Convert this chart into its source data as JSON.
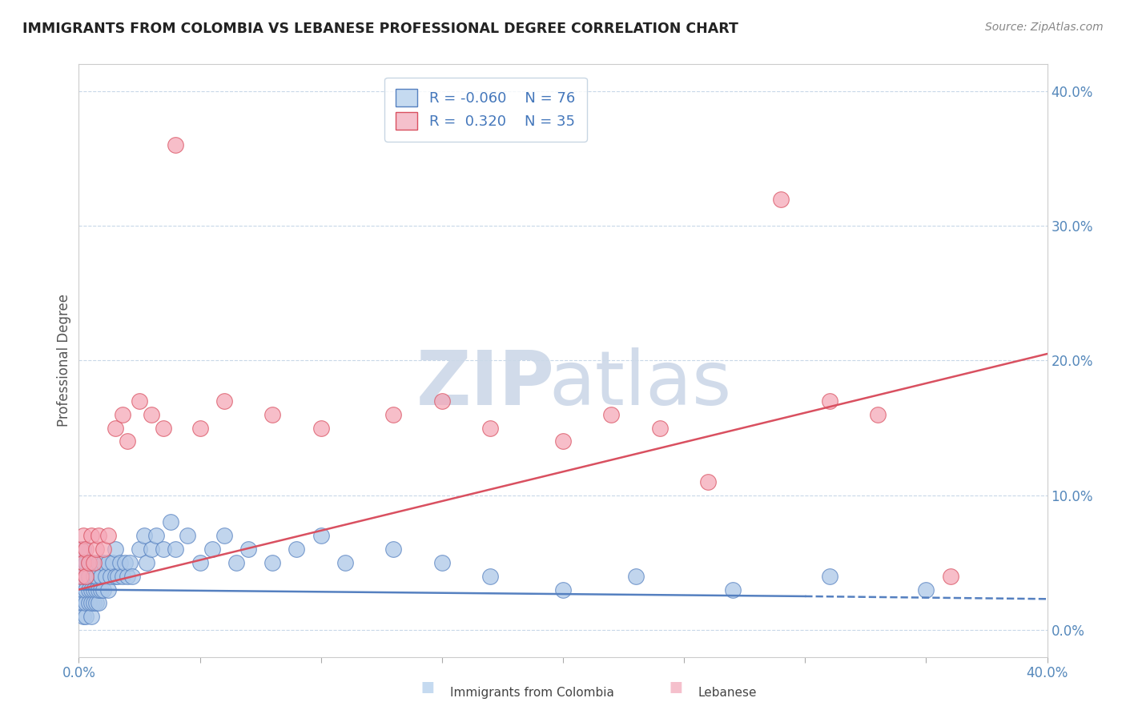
{
  "title": "IMMIGRANTS FROM COLOMBIA VS LEBANESE PROFESSIONAL DEGREE CORRELATION CHART",
  "source": "Source: ZipAtlas.com",
  "ylabel": "Professional Degree",
  "xlim": [
    0.0,
    0.4
  ],
  "ylim": [
    -0.02,
    0.42
  ],
  "colombia_R": -0.06,
  "colombia_N": 76,
  "lebanese_R": 0.32,
  "lebanese_N": 35,
  "colombia_color": "#adc8e8",
  "lebanese_color": "#f5a8b8",
  "colombia_line_color": "#5580c0",
  "lebanese_line_color": "#d95060",
  "legend_box_colombia": "#c5daf0",
  "legend_box_lebanese": "#f5c0cc",
  "watermark_color": "#ccd8e8",
  "background_color": "#ffffff",
  "colombia_x": [
    0.001,
    0.001,
    0.001,
    0.001,
    0.002,
    0.002,
    0.002,
    0.002,
    0.002,
    0.002,
    0.003,
    0.003,
    0.003,
    0.003,
    0.003,
    0.004,
    0.004,
    0.004,
    0.004,
    0.005,
    0.005,
    0.005,
    0.005,
    0.006,
    0.006,
    0.006,
    0.007,
    0.007,
    0.007,
    0.008,
    0.008,
    0.008,
    0.009,
    0.009,
    0.01,
    0.01,
    0.011,
    0.012,
    0.012,
    0.013,
    0.014,
    0.015,
    0.015,
    0.016,
    0.017,
    0.018,
    0.019,
    0.02,
    0.021,
    0.022,
    0.025,
    0.027,
    0.028,
    0.03,
    0.032,
    0.035,
    0.038,
    0.04,
    0.045,
    0.05,
    0.055,
    0.06,
    0.065,
    0.07,
    0.08,
    0.09,
    0.1,
    0.11,
    0.13,
    0.15,
    0.17,
    0.2,
    0.23,
    0.27,
    0.31,
    0.35
  ],
  "colombia_y": [
    0.02,
    0.03,
    0.04,
    0.05,
    0.01,
    0.02,
    0.03,
    0.04,
    0.05,
    0.06,
    0.01,
    0.02,
    0.03,
    0.04,
    0.05,
    0.02,
    0.03,
    0.04,
    0.05,
    0.01,
    0.02,
    0.03,
    0.05,
    0.02,
    0.03,
    0.04,
    0.02,
    0.03,
    0.04,
    0.02,
    0.03,
    0.05,
    0.03,
    0.04,
    0.03,
    0.05,
    0.04,
    0.03,
    0.05,
    0.04,
    0.05,
    0.04,
    0.06,
    0.04,
    0.05,
    0.04,
    0.05,
    0.04,
    0.05,
    0.04,
    0.06,
    0.07,
    0.05,
    0.06,
    0.07,
    0.06,
    0.08,
    0.06,
    0.07,
    0.05,
    0.06,
    0.07,
    0.05,
    0.06,
    0.05,
    0.06,
    0.07,
    0.05,
    0.06,
    0.05,
    0.04,
    0.03,
    0.04,
    0.03,
    0.04,
    0.03
  ],
  "lebanese_x": [
    0.001,
    0.001,
    0.002,
    0.002,
    0.003,
    0.003,
    0.004,
    0.005,
    0.006,
    0.007,
    0.008,
    0.01,
    0.012,
    0.015,
    0.018,
    0.02,
    0.025,
    0.03,
    0.035,
    0.04,
    0.05,
    0.06,
    0.08,
    0.1,
    0.13,
    0.15,
    0.17,
    0.2,
    0.22,
    0.24,
    0.26,
    0.29,
    0.31,
    0.33,
    0.36
  ],
  "lebanese_y": [
    0.04,
    0.06,
    0.05,
    0.07,
    0.04,
    0.06,
    0.05,
    0.07,
    0.05,
    0.06,
    0.07,
    0.06,
    0.07,
    0.15,
    0.16,
    0.14,
    0.17,
    0.16,
    0.15,
    0.36,
    0.15,
    0.17,
    0.16,
    0.15,
    0.16,
    0.17,
    0.15,
    0.14,
    0.16,
    0.15,
    0.11,
    0.32,
    0.17,
    0.16,
    0.04
  ]
}
